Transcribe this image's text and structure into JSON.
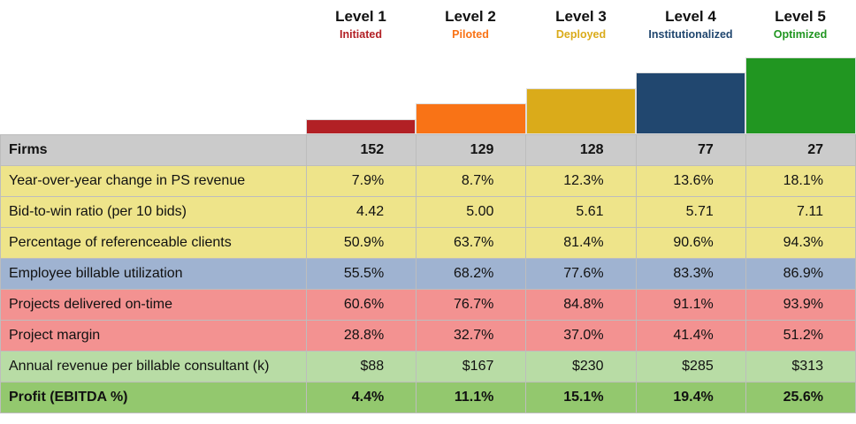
{
  "chart_data": {
    "type": "table",
    "levels": [
      {
        "name": "Level 1",
        "stage": "Initiated",
        "color": "#B22025",
        "level": 1
      },
      {
        "name": "Level 2",
        "stage": "Piloted",
        "color": "#F97316",
        "level": 2
      },
      {
        "name": "Level 3",
        "stage": "Deployed",
        "color": "#DAAB1A",
        "level": 3
      },
      {
        "name": "Level 4",
        "stage": "Institutionalized",
        "color": "#21476F",
        "level": 4
      },
      {
        "name": "Level 5",
        "stage": "Optimized",
        "color": "#219621",
        "level": 5
      }
    ],
    "rows": [
      {
        "label": "Firms",
        "bg": "#CBCBCB",
        "bold": true,
        "values": [
          "152",
          "129",
          "128",
          "77",
          "27"
        ]
      },
      {
        "label": "Year-over-year change in PS revenue",
        "bg": "#EEE48A",
        "values": [
          "7.9%",
          "8.7%",
          "12.3%",
          "13.6%",
          "18.1%"
        ]
      },
      {
        "label": "Bid-to-win ratio (per 10 bids)",
        "bg": "#EEE48A",
        "values": [
          "4.42",
          "5.00",
          "5.61",
          "5.71",
          "7.11"
        ]
      },
      {
        "label": "Percentage of referenceable clients",
        "bg": "#EEE48A",
        "values": [
          "50.9%",
          "63.7%",
          "81.4%",
          "90.6%",
          "94.3%"
        ]
      },
      {
        "label": "Employee billable utilization",
        "bg": "#9FB3D1",
        "values": [
          "55.5%",
          "68.2%",
          "77.6%",
          "83.3%",
          "86.9%"
        ]
      },
      {
        "label": "Projects delivered on-time",
        "bg": "#F39291",
        "values": [
          "60.6%",
          "76.7%",
          "84.8%",
          "91.1%",
          "93.9%"
        ]
      },
      {
        "label": "Project margin",
        "bg": "#F39291",
        "values": [
          "28.8%",
          "32.7%",
          "37.0%",
          "41.4%",
          "51.2%"
        ]
      },
      {
        "label": "Annual revenue per billable consultant (k)",
        "bg": "#B8DCA5",
        "values": [
          "$88",
          "$167",
          "$230",
          "$285",
          "$313"
        ]
      },
      {
        "label": "Profit (EBITDA %)",
        "bg": "#93C86E",
        "bold": true,
        "values": [
          "4.4%",
          "11.1%",
          "15.1%",
          "19.4%",
          "25.6%"
        ]
      }
    ]
  }
}
